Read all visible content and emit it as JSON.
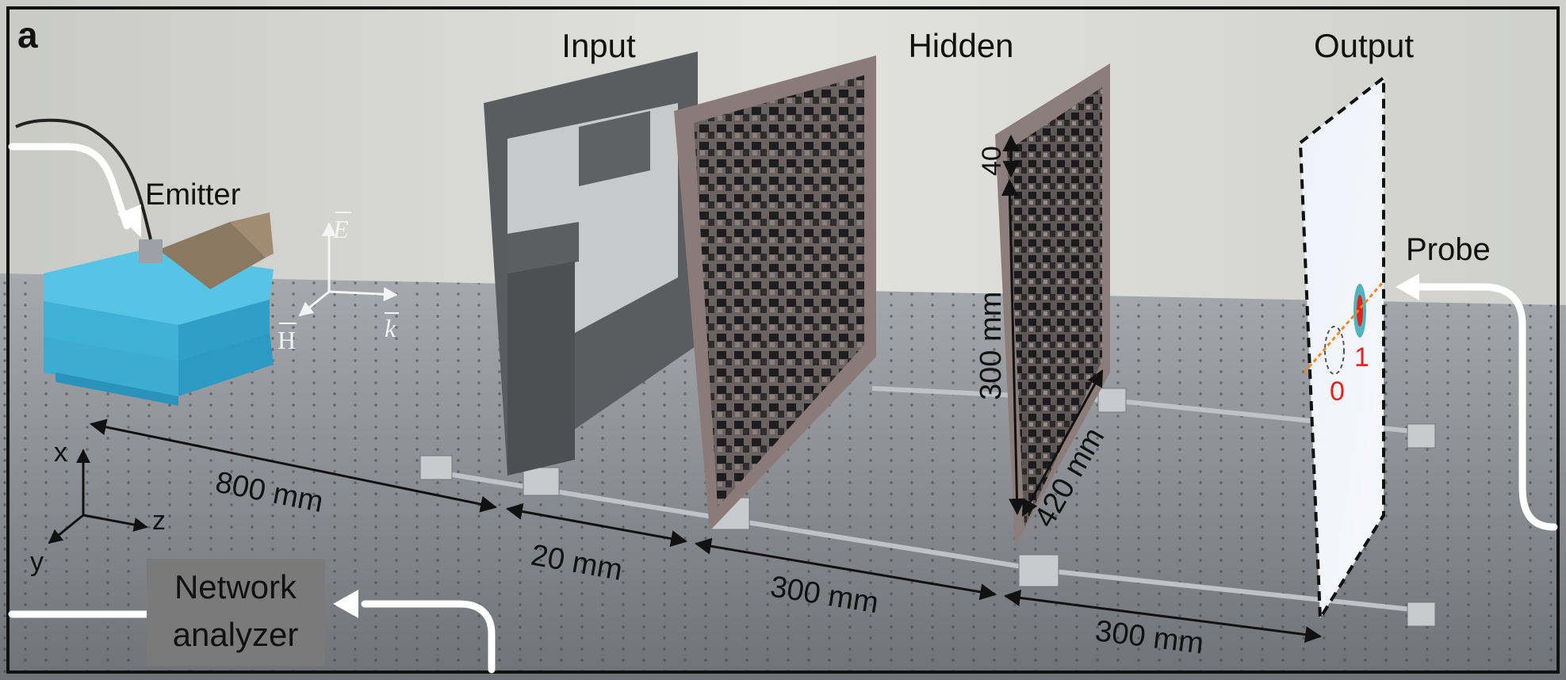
{
  "panel_label": "a",
  "layer_labels": {
    "input": "Input",
    "hidden": "Hidden",
    "output": "Output"
  },
  "device_labels": {
    "emitter": "Emitter",
    "probe": "Probe",
    "network_analyzer_line1": "Network",
    "network_analyzer_line2": "analyzer"
  },
  "field_axes": {
    "e": "E",
    "h": "H",
    "k": "k"
  },
  "coord_axes": {
    "x": "x",
    "y": "y",
    "z": "z"
  },
  "dimensions": {
    "emitter_to_input": "800 mm",
    "input_to_plate": "20 mm",
    "plate_to_hidden": "300 mm",
    "hidden_to_output": "300 mm",
    "pixel_size": "40",
    "hidden_height": "300 mm",
    "hidden_width": "420 mm"
  },
  "output_markers": {
    "zero": "0",
    "one": "1"
  },
  "colors": {
    "frame": "#111111",
    "foam_block": "#46b8dc",
    "table": "#8a8d92",
    "wall": "#d9dad6",
    "marker_red": "#e8221a",
    "arrow_white": "#ffffff",
    "analyzer_box": "#7a7a7a"
  }
}
